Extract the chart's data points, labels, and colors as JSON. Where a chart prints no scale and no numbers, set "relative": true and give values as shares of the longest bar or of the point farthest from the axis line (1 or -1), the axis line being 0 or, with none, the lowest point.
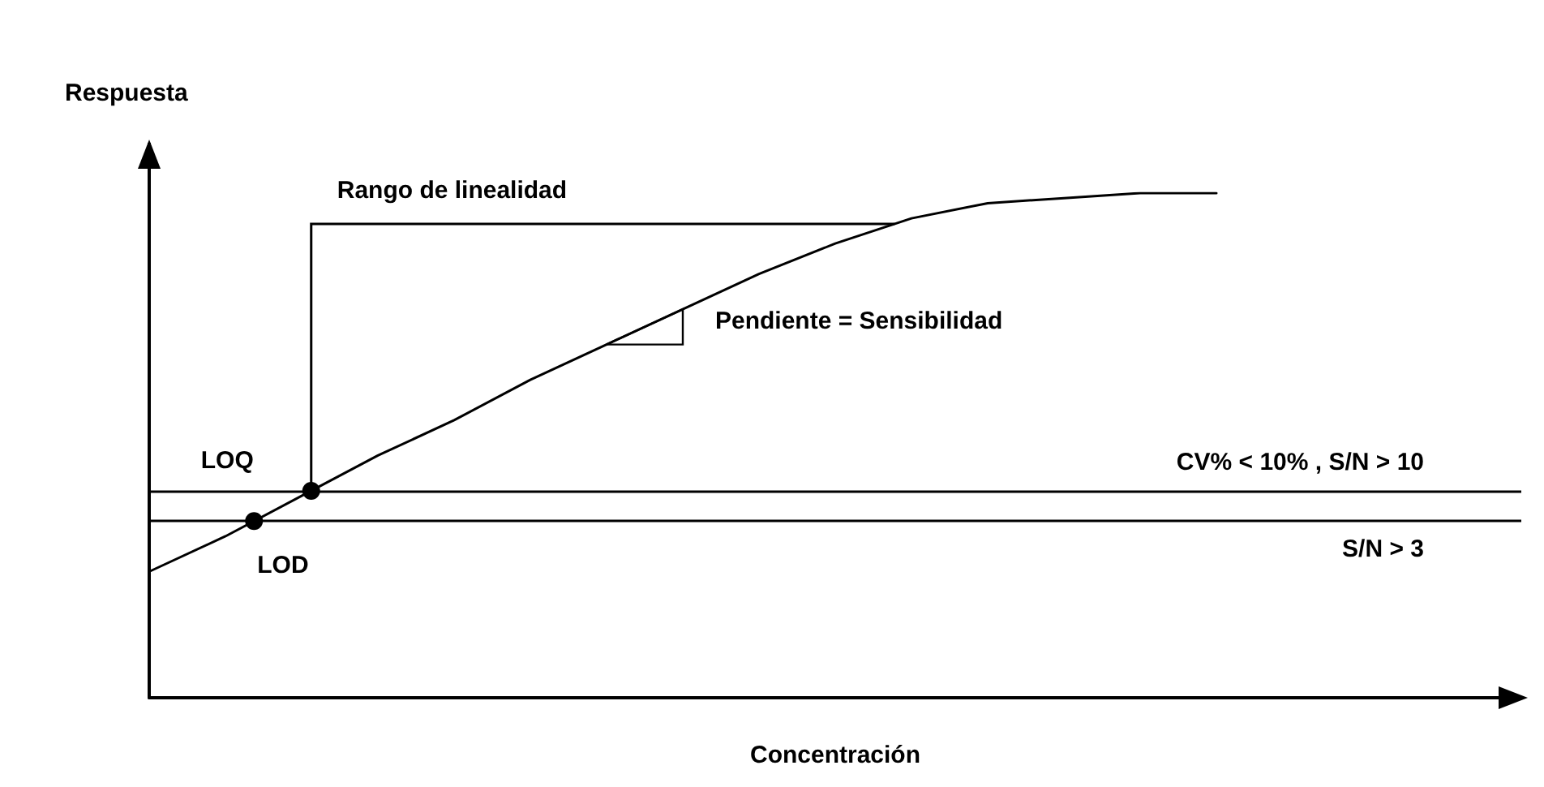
{
  "chart_data": {
    "type": "line",
    "relative": true,
    "xlabel": "Concentración",
    "ylabel": "Respuesta",
    "categories": [
      null,
      null,
      null,
      null,
      null,
      null,
      null,
      null,
      null,
      null,
      null,
      null,
      null,
      null,
      null,
      null,
      null,
      null,
      null
    ],
    "series": [
      {
        "color": "#000000",
        "values": [
          0.25,
          0.32,
          0.4,
          0.48,
          0.55,
          0.63,
          0.7,
          0.77,
          0.84,
          0.9,
          0.95,
          0.98,
          0.99,
          1.0,
          1.0,
          null,
          null,
          null,
          null
        ]
      }
    ],
    "marker": "none",
    "line_style": "solid",
    "ref_lines": [
      {
        "axis": "y",
        "value": 0.41,
        "label": "CV% < 10% , S/N > 10",
        "color": "#000000"
      },
      {
        "axis": "y",
        "value": 0.35,
        "label": "S/N > 3",
        "color": "#000000"
      }
    ],
    "annotations": [
      "Rango de linealidad",
      "Pendiente = Sensibilidad",
      "LOQ",
      "LOD"
    ]
  }
}
